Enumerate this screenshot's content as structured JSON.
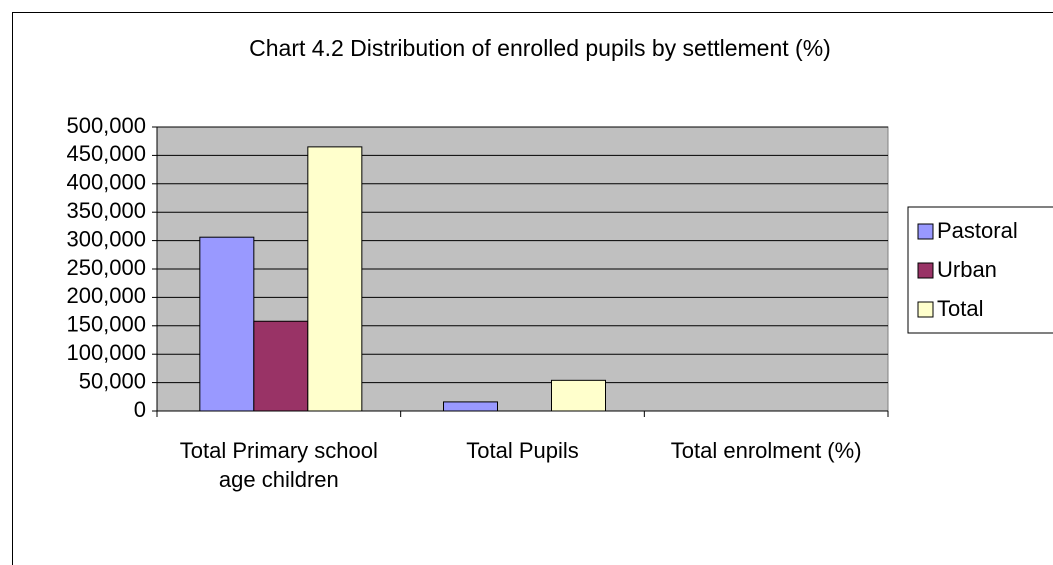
{
  "chart_data": {
    "type": "bar",
    "title": "Chart 4.2 Distribution of enrolled pupils by settlement (%)",
    "categories": [
      "Total Primary school age children",
      "Total Pupils",
      "Total enrolment (%)"
    ],
    "series": [
      {
        "name": "Pastoral",
        "color": "#9999ff",
        "values": [
          306000,
          16000,
          0
        ]
      },
      {
        "name": "Urban",
        "color": "#993366",
        "values": [
          158000,
          0,
          0
        ]
      },
      {
        "name": "Total",
        "color": "#ffffcc",
        "values": [
          465000,
          54000,
          0
        ]
      }
    ],
    "ylim": [
      0,
      500000
    ],
    "yticks": [
      0,
      {
        "value": 50000,
        "label": "50,000"
      },
      {
        "value": 100000,
        "label": "100,000"
      },
      {
        "value": 150000,
        "label": "150,000"
      },
      {
        "value": 200000,
        "label": "200,000"
      },
      {
        "value": 250000,
        "label": "250,000"
      },
      {
        "value": 300000,
        "label": "300,000"
      },
      {
        "value": 350000,
        "label": "350,000"
      },
      {
        "value": 400000,
        "label": "400,000"
      },
      {
        "value": 450000,
        "label": "450,000"
      },
      {
        "value": 500000,
        "label": "500,000"
      }
    ],
    "grid": true,
    "legend": "right",
    "plot_background": "#c0c0c0"
  }
}
